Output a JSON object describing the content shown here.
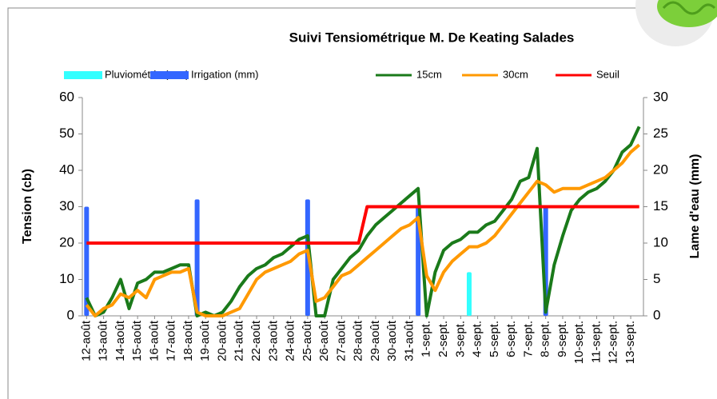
{
  "chart_data": {
    "type": "line",
    "title": "Suivi Tensiométrique M. De Keating Salades",
    "y_label": "Tension (cb)",
    "y2_label": "Lame d'eau (mm)",
    "categories": [
      "12-août",
      null,
      "13-août",
      null,
      "14-août",
      null,
      "15-août",
      null,
      "16-août",
      null,
      "17-août",
      null,
      "18-août",
      null,
      "19-août",
      null,
      "20-août",
      null,
      "21-août",
      null,
      "22-août",
      null,
      "23-août",
      null,
      "24-août",
      null,
      "25-août",
      null,
      "26-août",
      null,
      "27-août",
      null,
      "28-août",
      null,
      "29-août",
      null,
      "30-août",
      null,
      "31-août",
      null,
      "1-sept.",
      null,
      "2-sept.",
      null,
      "3-sept.",
      null,
      "4-sept.",
      null,
      "5-sept.",
      null,
      "6-sept.",
      null,
      "7-sept.",
      null,
      "8-sept.",
      null,
      "9-sept.",
      null,
      "10-sept.",
      null,
      "11-sept.",
      null,
      "12-sept.",
      null,
      "13-sept.",
      null
    ],
    "series": [
      {
        "name": "Pluviométrie (mm)",
        "type": "bar",
        "axis": "y2",
        "color": "#33ffff",
        "values": [
          null,
          null,
          null,
          null,
          null,
          null,
          null,
          null,
          null,
          null,
          null,
          null,
          null,
          null,
          null,
          null,
          null,
          null,
          null,
          null,
          null,
          null,
          null,
          null,
          null,
          null,
          null,
          null,
          null,
          null,
          null,
          null,
          null,
          null,
          null,
          null,
          null,
          null,
          null,
          null,
          null,
          null,
          null,
          null,
          null,
          6,
          null,
          null,
          null,
          null,
          null,
          null,
          null,
          null,
          null,
          null,
          null,
          null,
          null,
          null,
          null,
          null,
          null,
          null,
          null,
          null
        ]
      },
      {
        "name": "Irrigation (mm)",
        "type": "bar",
        "axis": "y2",
        "color": "#3366ff",
        "values": [
          15,
          null,
          null,
          null,
          null,
          null,
          null,
          null,
          null,
          null,
          null,
          null,
          null,
          16,
          null,
          null,
          null,
          null,
          null,
          null,
          null,
          null,
          null,
          null,
          null,
          null,
          16,
          null,
          null,
          null,
          null,
          null,
          null,
          null,
          null,
          null,
          null,
          null,
          null,
          15,
          null,
          null,
          null,
          null,
          null,
          null,
          null,
          null,
          null,
          null,
          null,
          null,
          null,
          null,
          15,
          null,
          null,
          null,
          null,
          null,
          null,
          null,
          null,
          null,
          null,
          null
        ]
      },
      {
        "name": "15cm",
        "type": "line",
        "color": "#1a7a1a",
        "values": [
          5,
          0,
          1,
          5,
          10,
          2,
          9,
          10,
          12,
          12,
          13,
          14,
          14,
          0,
          1,
          0,
          1,
          4,
          8,
          11,
          13,
          14,
          16,
          17,
          19,
          21,
          22,
          0,
          0,
          10,
          13,
          16,
          18,
          22,
          25,
          27,
          29,
          31,
          33,
          35,
          0,
          12,
          18,
          20,
          21,
          23,
          23,
          25,
          26,
          29,
          32,
          37,
          38,
          46,
          1,
          14,
          22,
          29,
          32,
          34,
          35,
          37,
          40,
          45,
          47,
          52
        ]
      },
      {
        "name": "30cm",
        "type": "line",
        "color": "#ff9900",
        "values": [
          3,
          0,
          2,
          3,
          6,
          5,
          7,
          5,
          10,
          11,
          12,
          12,
          13,
          1,
          0,
          0,
          0,
          1,
          2,
          6,
          10,
          12,
          13,
          14,
          15,
          17,
          18,
          4,
          5,
          8,
          11,
          12,
          14,
          16,
          18,
          20,
          22,
          24,
          25,
          27,
          11,
          7,
          12,
          15,
          17,
          19,
          19,
          20,
          22,
          25,
          28,
          31,
          34,
          37,
          36,
          34,
          35,
          35,
          35,
          36,
          37,
          38,
          40,
          42,
          45,
          47
        ]
      },
      {
        "name": "Seuil",
        "type": "line",
        "color": "#ff0000",
        "values": [
          20,
          20,
          20,
          20,
          20,
          20,
          20,
          20,
          20,
          20,
          20,
          20,
          20,
          20,
          20,
          20,
          20,
          20,
          20,
          20,
          20,
          20,
          20,
          20,
          20,
          20,
          20,
          20,
          20,
          20,
          20,
          20,
          20,
          30,
          30,
          30,
          30,
          30,
          30,
          30,
          30,
          30,
          30,
          30,
          30,
          30,
          30,
          30,
          30,
          30,
          30,
          30,
          30,
          30,
          30,
          30,
          30,
          30,
          30,
          30,
          30,
          30,
          30,
          30,
          30,
          30
        ]
      }
    ],
    "ylim": [
      0,
      60
    ],
    "yticks": [
      0,
      10,
      20,
      30,
      40,
      50,
      60
    ],
    "y2lim": [
      0,
      30
    ],
    "y2ticks": [
      0,
      5,
      10,
      15,
      20,
      25,
      30
    ],
    "legend": "top"
  }
}
